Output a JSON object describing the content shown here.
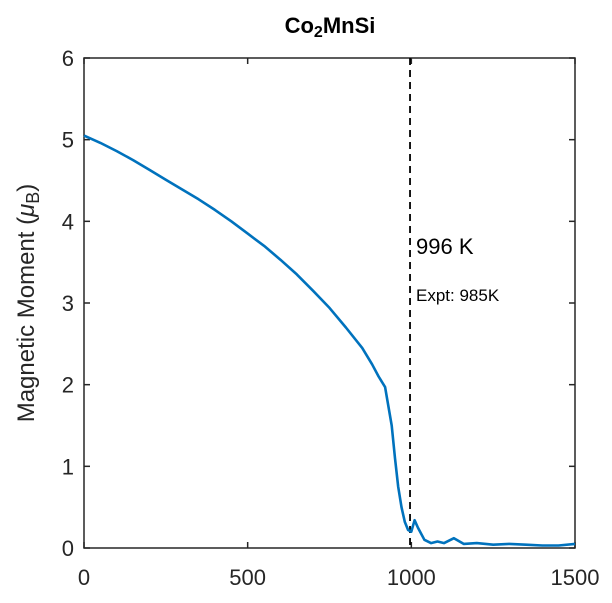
{
  "chart_data": {
    "type": "line",
    "title": {
      "main": "Co",
      "sub": "2",
      "rest": "MnSi"
    },
    "ylabel": {
      "main": "Magnetic Moment (",
      "greek": "μ",
      "sub": "B",
      "close": ")"
    },
    "xlabel": "",
    "xlim": [
      0,
      1500
    ],
    "ylim": [
      0,
      6
    ],
    "xticks": [
      0,
      500,
      1000,
      1500
    ],
    "yticks": [
      0,
      1,
      2,
      3,
      4,
      5,
      6
    ],
    "grid": false,
    "line_color": "#0072BD",
    "vline": {
      "x": 996,
      "style": "dashed",
      "color": "#000000"
    },
    "annotations": {
      "tc_label": "996 K",
      "expt_label": "Expt: 985K"
    },
    "series": [
      {
        "x": [
          0,
          50,
          100,
          150,
          200,
          250,
          300,
          350,
          400,
          450,
          500,
          550,
          600,
          650,
          700,
          750,
          800,
          850,
          880,
          900,
          920,
          940,
          950,
          960,
          970,
          980,
          990,
          1000,
          1010,
          1020,
          1040,
          1060,
          1080,
          1100,
          1130,
          1160,
          1200,
          1250,
          1300,
          1350,
          1400,
          1450,
          1500
        ],
        "y": [
          5.05,
          4.96,
          4.86,
          4.75,
          4.63,
          4.51,
          4.39,
          4.27,
          4.14,
          4.0,
          3.85,
          3.7,
          3.53,
          3.35,
          3.15,
          2.94,
          2.7,
          2.45,
          2.25,
          2.1,
          1.97,
          1.5,
          1.1,
          0.75,
          0.5,
          0.32,
          0.22,
          0.2,
          0.34,
          0.25,
          0.1,
          0.06,
          0.08,
          0.06,
          0.12,
          0.05,
          0.06,
          0.04,
          0.05,
          0.04,
          0.03,
          0.03,
          0.05
        ]
      }
    ]
  }
}
